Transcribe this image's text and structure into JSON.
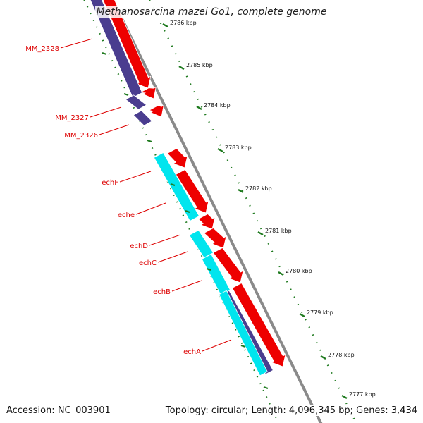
{
  "title": "Methanosarcina mazei Go1, complete genome",
  "accession_label": "Accession: NC_003901",
  "topology_label": "Topology: circular; Length: 4,096,345 bp; Genes: 3,434",
  "colors": {
    "forward_cds": "#ee0000",
    "reverse_cds": "#4a3d8f",
    "ech_operon": "#00e5ee",
    "backbone": "#8a8a8a",
    "ticks": "#1f7a1f",
    "labels": "#dd0000"
  },
  "ticks": [
    {
      "kbp": 2786,
      "label": "2786 kbp"
    },
    {
      "kbp": 2785,
      "label": "2785 kbp"
    },
    {
      "kbp": 2784,
      "label": "2784 kbp"
    },
    {
      "kbp": 2783,
      "label": "2783 kbp"
    },
    {
      "kbp": 2782,
      "label": "2782 kbp"
    },
    {
      "kbp": 2781,
      "label": "2781 kbp"
    },
    {
      "kbp": 2780,
      "label": "2780 kbp"
    },
    {
      "kbp": 2779,
      "label": "2779 kbp"
    },
    {
      "kbp": 2778,
      "label": "2778 kbp"
    },
    {
      "kbp": 2777,
      "label": "2777 kbp"
    }
  ],
  "genes": [
    {
      "label": "MM_2328"
    },
    {
      "label": "MM_2327"
    },
    {
      "label": "MM_2326"
    },
    {
      "label": "echF"
    },
    {
      "label": "eche"
    },
    {
      "label": "echD"
    },
    {
      "label": "echC"
    },
    {
      "label": "echB"
    },
    {
      "label": "echA"
    }
  ]
}
